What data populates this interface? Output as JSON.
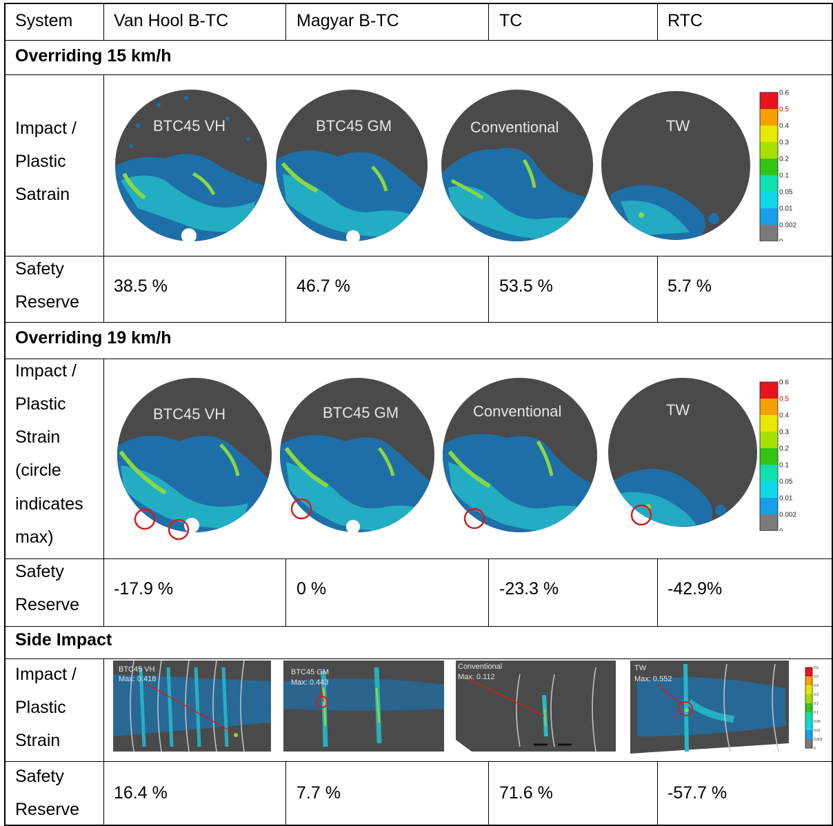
{
  "header": {
    "system": "System",
    "col1": "Van Hool B-TC",
    "col2": "Magyar B-TC",
    "col3": "TC",
    "col4": "RTC"
  },
  "sections": [
    {
      "title": "Overriding 15 km/h",
      "impact_label": [
        "Impact /",
        "Plastic",
        "Satrain"
      ],
      "figure_labels": [
        "BTC45 VH",
        "BTC45 GM",
        "Conventional",
        "TW"
      ],
      "safety_label": [
        "Safety",
        "Reserve"
      ],
      "safety_values": [
        "38.5 %",
        "46.7 %",
        "53.5 %",
        "5.7 %"
      ]
    },
    {
      "title": "Overriding 19 km/h",
      "impact_label": [
        "Impact /",
        "Plastic",
        "Strain",
        "(circle",
        "indicates",
        "max)"
      ],
      "figure_labels": [
        "BTC45 VH",
        "BTC45 GM",
        "Conventional",
        "TW"
      ],
      "safety_label": [
        "Safety",
        "Reserve"
      ],
      "safety_values": [
        "-17.9 %",
        "0 %",
        "-23.3 %",
        "-42.9%"
      ]
    },
    {
      "title": "Side Impact",
      "impact_label": [
        "Impact /",
        "Plastic",
        "Strain"
      ],
      "figure_labels": [
        "BTC45 VH",
        "BTC45 GM",
        "Conventional",
        "TW"
      ],
      "figure_max": [
        "Max: 0.418",
        "Max: 0.443",
        "Max: 0.112",
        "Max: 0.552"
      ],
      "safety_label": [
        "Safety",
        "Reserve"
      ],
      "safety_values": [
        "16.4 %",
        "7.7 %",
        "71.6 %",
        "-57.7 %"
      ]
    }
  ],
  "legend": {
    "ticks": [
      "0.6",
      "0.5",
      "0.4",
      "0.3",
      "0.2",
      "0.1",
      "0.05",
      "0.01",
      "0.002",
      "0"
    ],
    "colors": [
      "#e8141c",
      "#f5a000",
      "#e8e800",
      "#a6e000",
      "#34c414",
      "#10e0b0",
      "#10d8e8",
      "#1a9ee8",
      "#7a7a7a"
    ],
    "highlight_color": "#cc0000"
  },
  "colors": {
    "sphere": "#4a4a4a",
    "strain_blue": "#1e6fa8",
    "strain_cyan": "#25b8c8",
    "strain_green": "#8ad840",
    "max_circle": "#d41c1c"
  }
}
